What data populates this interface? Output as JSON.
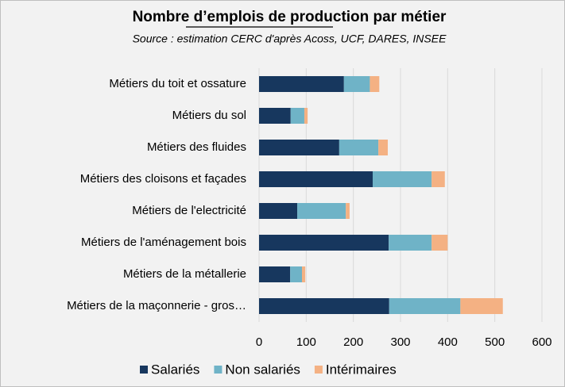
{
  "chart_data": {
    "type": "stacked-barh",
    "title": "Nombre d’emplois de production par métier",
    "subtitle": "Source : estimation CERC d'après Acoss, UCF, DARES, INSEE",
    "categories": [
      "Métiers du toit et ossature",
      "Métiers du sol",
      "Métiers des fluides",
      "Métiers des cloisons et façades",
      "Métiers de l'electricité",
      "Métiers de l'aménagement bois",
      "Métiers de la métallerie",
      "Métiers de la maçonnerie - gros…"
    ],
    "series": [
      {
        "name": "Salariés",
        "color": "#17375e",
        "values": [
          180,
          67,
          170,
          241,
          81,
          275,
          66,
          276
        ]
      },
      {
        "name": "Non salariés",
        "color": "#6fb3c7",
        "values": [
          55,
          29,
          83,
          125,
          103,
          91,
          25,
          151
        ]
      },
      {
        "name": "Intérimaires",
        "color": "#f4b183",
        "values": [
          20,
          7,
          20,
          28,
          8,
          34,
          7,
          90
        ]
      }
    ],
    "xlim": [
      0,
      600
    ],
    "xticks": [
      0,
      100,
      200,
      300,
      400,
      500,
      600
    ],
    "grid": true,
    "legend": "bottom"
  }
}
